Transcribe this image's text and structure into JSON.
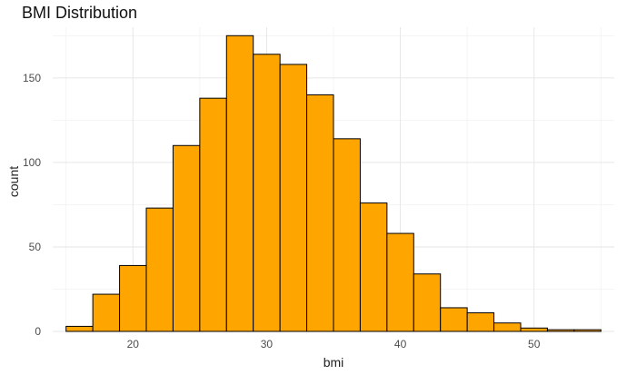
{
  "chart_data": {
    "type": "bar",
    "title": "BMI Distribution",
    "xlabel": "bmi",
    "ylabel": "count",
    "xlim": [
      14,
      56
    ],
    "ylim": [
      0,
      180
    ],
    "x_ticks": [
      20,
      30,
      40,
      50
    ],
    "y_ticks": [
      0,
      50,
      100,
      150
    ],
    "bin_width": 2,
    "bin_start": 15,
    "values": [
      3,
      22,
      39,
      73,
      110,
      138,
      175,
      164,
      158,
      140,
      114,
      76,
      58,
      34,
      14,
      11,
      5,
      2,
      1,
      1
    ],
    "fill_color": "#FFA500",
    "edge_color": "#000000",
    "grid": true
  }
}
